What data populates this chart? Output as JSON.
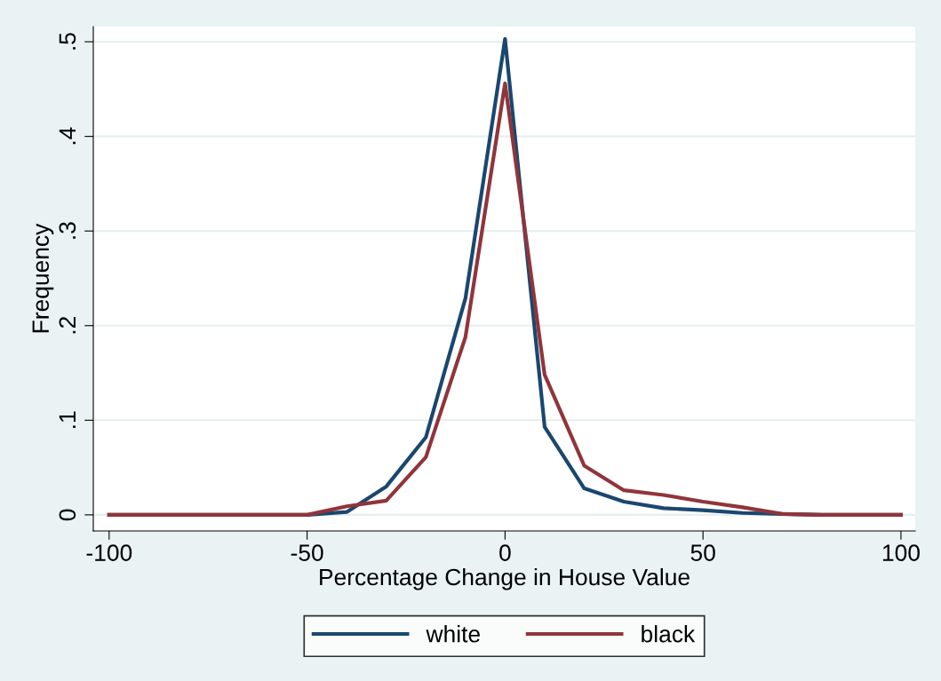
{
  "chart_data": {
    "type": "line",
    "xlabel": "Percentage Change in House Value",
    "ylabel": "Frequency",
    "x": [
      -100,
      -90,
      -80,
      -70,
      -60,
      -50,
      -40,
      -30,
      -20,
      -10,
      0,
      10,
      20,
      30,
      40,
      50,
      60,
      70,
      80,
      90,
      100
    ],
    "series": [
      {
        "name": "white",
        "color": "#1a476f",
        "values": [
          0,
          0,
          0,
          0,
          0,
          0,
          0.003,
          0.03,
          0.082,
          0.229,
          0.503,
          0.093,
          0.028,
          0.014,
          0.007,
          0.005,
          0.002,
          0.001,
          0,
          0,
          0
        ]
      },
      {
        "name": "black",
        "color": "#90353b",
        "values": [
          0,
          0,
          0,
          0,
          0,
          0,
          0.009,
          0.015,
          0.061,
          0.188,
          0.456,
          0.148,
          0.052,
          0.026,
          0.021,
          0.014,
          0.008,
          0.001,
          0,
          0,
          0
        ]
      }
    ],
    "xlim": [
      -104,
      103.6
    ],
    "ylim": [
      -0.017,
      0.516
    ],
    "xticks": [
      -100,
      -50,
      0,
      50,
      100
    ],
    "yticks": [
      {
        "value": 0,
        "label": "0"
      },
      {
        "value": 0.1,
        "label": ".1"
      },
      {
        "value": 0.2,
        "label": ".2"
      },
      {
        "value": 0.3,
        "label": ".3"
      },
      {
        "value": 0.4,
        "label": ".4"
      },
      {
        "value": 0.5,
        "label": ".5"
      }
    ],
    "grid": "y",
    "legend": "bottom",
    "line_style": "solid",
    "marker": "none"
  }
}
